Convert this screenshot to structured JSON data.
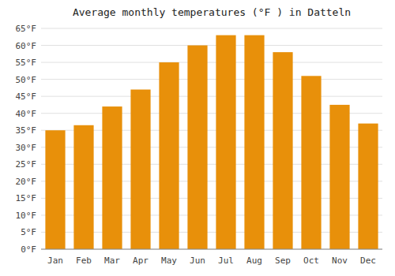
{
  "chart_data": {
    "type": "bar",
    "title": "Average monthly temperatures (°F ) in Datteln",
    "categories": [
      "Jan",
      "Feb",
      "Mar",
      "Apr",
      "May",
      "Jun",
      "Jul",
      "Aug",
      "Sep",
      "Oct",
      "Nov",
      "Dec"
    ],
    "values": [
      35,
      36.5,
      42,
      47,
      55,
      60,
      63,
      63,
      58,
      51,
      42.5,
      37
    ],
    "color": "#E8900A",
    "ylim": [
      0,
      65
    ],
    "yticks": [
      {
        "value": 0,
        "label": "0°F"
      },
      {
        "value": 5,
        "label": "5°F"
      },
      {
        "value": 10,
        "label": "10°F"
      },
      {
        "value": 15,
        "label": "15°F"
      },
      {
        "value": 20,
        "label": "20°F"
      },
      {
        "value": 25,
        "label": "25°F"
      },
      {
        "value": 30,
        "label": "30°F"
      },
      {
        "value": 35,
        "label": "35°F"
      },
      {
        "value": 40,
        "label": "40°F"
      },
      {
        "value": 45,
        "label": "45°F"
      },
      {
        "value": 50,
        "label": "50°F"
      },
      {
        "value": 55,
        "label": "55°F"
      },
      {
        "value": 60,
        "label": "60°F"
      },
      {
        "value": 65,
        "label": "65°F"
      }
    ],
    "grid": true
  }
}
